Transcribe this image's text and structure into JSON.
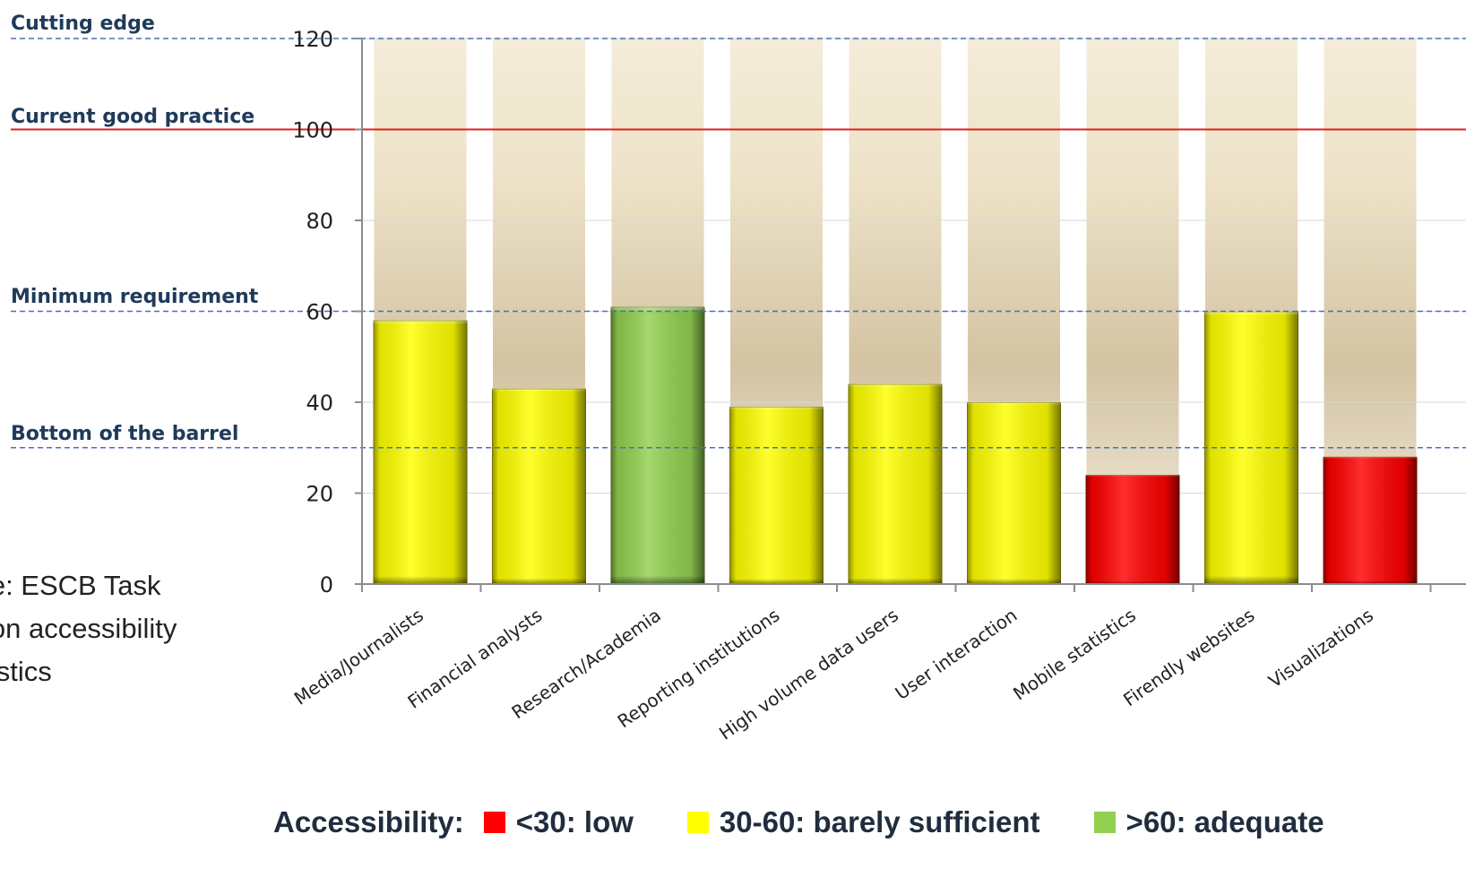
{
  "chart_data": {
    "type": "bar",
    "categories": [
      "Media/Journalists",
      "Financial analysts",
      "Research/Academia",
      "Reporting institutions",
      "High volume data users",
      "User interaction",
      "Mobile statistics",
      "Firendly websites",
      "Visualizations"
    ],
    "values": [
      58,
      43,
      61,
      39,
      44,
      40,
      24,
      60,
      28
    ],
    "ylim": [
      0,
      120
    ],
    "yticks": [
      0,
      20,
      40,
      60,
      80,
      100,
      120
    ],
    "reference_lines": [
      {
        "label": "Cutting edge",
        "value": 120,
        "style": "dashed",
        "color": "#4a6fb5"
      },
      {
        "label": "Current good practice",
        "value": 100,
        "style": "solid",
        "color": "#e0201c"
      },
      {
        "label": "Minimum requirement",
        "value": 60,
        "style": "dashed",
        "color": "#4a6fb5"
      },
      {
        "label": "Bottom of the barrel",
        "value": 30,
        "style": "dashed",
        "color": "#4a6fb5"
      }
    ],
    "color_rules": [
      {
        "max": 30,
        "color": "#ff0000"
      },
      {
        "max": 60,
        "color": "#ffff00"
      },
      {
        "max": 999,
        "color": "#92d050"
      }
    ],
    "legend": {
      "title": "Accessibility:",
      "placement": "bottom",
      "items": [
        {
          "label": "<30: low",
          "color": "#ff0000"
        },
        {
          "label": "30-60: barely sufficient",
          "color": "#ffff00"
        },
        {
          "label": ">60: adequate",
          "color": "#92d050"
        }
      ]
    },
    "grid": true
  },
  "source_note": "rce: ESCB Task\ne on accessibility\natistics"
}
